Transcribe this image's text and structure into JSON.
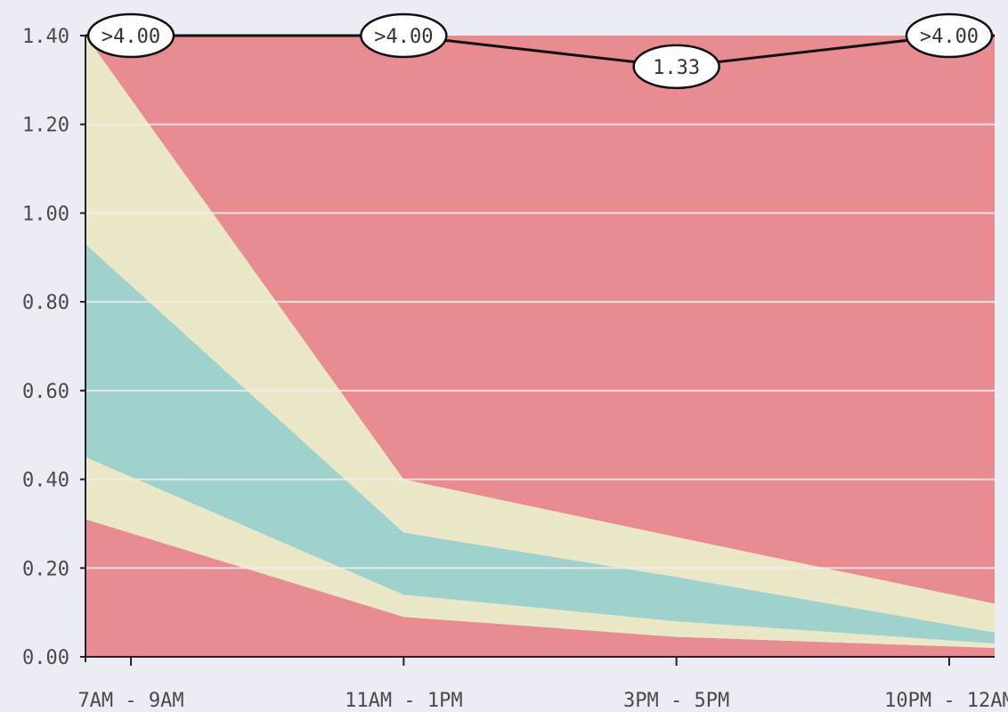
{
  "chart_data": {
    "type": "area",
    "title": "",
    "xlabel": "",
    "ylabel": "",
    "categories": [
      "7AM - 9AM",
      "11AM - 1PM",
      "3PM - 5PM",
      "10PM - 12AM"
    ],
    "ylim": [
      0,
      1.4
    ],
    "yticks": [
      "0.00",
      "0.20",
      "0.40",
      "0.60",
      "0.80",
      "1.00",
      "1.20",
      "1.40"
    ],
    "grid": true,
    "x_positions": [
      0.5,
      3.5,
      6.5,
      9.5
    ],
    "band_boundaries": {
      "x": [
        0,
        3.5,
        6.5,
        10
      ],
      "lower_outer": [
        0.31,
        0.09,
        0.045,
        0.02
      ],
      "lower_inner": [
        0.45,
        0.14,
        0.08,
        0.03
      ],
      "upper_inner": [
        0.93,
        0.28,
        0.18,
        0.055
      ],
      "upper_outer": [
        1.4,
        0.4,
        0.27,
        0.12
      ]
    },
    "bands": [
      {
        "range": "below lower_outer",
        "color": "#e88c92"
      },
      {
        "range": "lower_outer to lower_inner",
        "color": "#ebe8c8"
      },
      {
        "range": "lower_inner to upper_inner",
        "color": "#9fd1cd"
      },
      {
        "range": "upper_inner to upper_outer",
        "color": "#ebe8c8"
      },
      {
        "range": "above upper_outer",
        "color": "#e88c92"
      }
    ],
    "series": [
      {
        "values": [
          1.4,
          1.4,
          1.33,
          1.4
        ],
        "labels": [
          ">4.00",
          ">4.00",
          "1.33",
          ">4.00"
        ],
        "color": "#111111"
      }
    ]
  }
}
